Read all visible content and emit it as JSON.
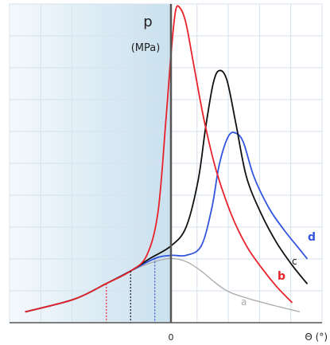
{
  "chart_data": {
    "type": "line",
    "title": "",
    "xlabel": "Θ (°)",
    "ylabel": "p",
    "yunit": "(MPa)",
    "xticks": [
      {
        "value": 0,
        "label": "0"
      }
    ],
    "xlim": [
      -10,
      10
    ],
    "ylim": [
      0,
      10
    ],
    "grid": true,
    "legend": "labels-at-curve-ends",
    "colors": {
      "a": "#aaaaaa",
      "b": "#e8222a",
      "c": "#111111",
      "d": "#3355dd",
      "shading": "#cfe3f0",
      "grid": "#d4e2ec",
      "axis": "#444444"
    },
    "series": [
      {
        "name": "a",
        "points": [
          [
            -9.0,
            0.3
          ],
          [
            -6.0,
            0.7
          ],
          [
            -4.0,
            1.2
          ],
          [
            -2.5,
            1.6
          ],
          [
            -1.0,
            1.9
          ],
          [
            0.0,
            2.0
          ],
          [
            1.0,
            1.9
          ],
          [
            2.0,
            1.6
          ],
          [
            3.0,
            1.2
          ],
          [
            4.0,
            0.9
          ],
          [
            6.0,
            0.6
          ],
          [
            8.5,
            0.3
          ]
        ]
      },
      {
        "name": "b",
        "points": [
          [
            -9.0,
            0.3
          ],
          [
            -6.0,
            0.7
          ],
          [
            -4.0,
            1.2
          ],
          [
            -2.5,
            1.6
          ],
          [
            -1.5,
            2.1
          ],
          [
            -0.8,
            3.5
          ],
          [
            -0.3,
            6.5
          ],
          [
            0.0,
            8.5
          ],
          [
            0.3,
            9.9
          ],
          [
            0.6,
            10.0
          ],
          [
            1.0,
            9.5
          ],
          [
            1.5,
            8.2
          ],
          [
            2.2,
            6.4
          ],
          [
            3.0,
            4.8
          ],
          [
            4.0,
            3.4
          ],
          [
            5.0,
            2.4
          ],
          [
            6.0,
            1.7
          ],
          [
            7.0,
            1.1
          ],
          [
            8.0,
            0.6
          ]
        ]
      },
      {
        "name": "c",
        "points": [
          [
            -9.0,
            0.3
          ],
          [
            -6.0,
            0.7
          ],
          [
            -4.0,
            1.2
          ],
          [
            -2.5,
            1.6
          ],
          [
            -1.3,
            2.0
          ],
          [
            0.0,
            2.4
          ],
          [
            1.0,
            3.0
          ],
          [
            1.8,
            4.5
          ],
          [
            2.3,
            6.2
          ],
          [
            2.8,
            7.6
          ],
          [
            3.2,
            8.0
          ],
          [
            3.7,
            7.7
          ],
          [
            4.3,
            6.3
          ],
          [
            5.0,
            4.6
          ],
          [
            6.0,
            3.4
          ],
          [
            7.0,
            2.5
          ],
          [
            8.0,
            1.8
          ],
          [
            9.0,
            1.2
          ]
        ]
      },
      {
        "name": "d",
        "points": [
          [
            -9.0,
            0.3
          ],
          [
            -6.0,
            0.7
          ],
          [
            -4.0,
            1.2
          ],
          [
            -2.5,
            1.6
          ],
          [
            -1.0,
            2.0
          ],
          [
            0.0,
            2.1
          ],
          [
            1.0,
            2.1
          ],
          [
            2.0,
            2.4
          ],
          [
            2.7,
            3.6
          ],
          [
            3.2,
            5.0
          ],
          [
            3.8,
            5.9
          ],
          [
            4.3,
            6.0
          ],
          [
            4.8,
            5.7
          ],
          [
            5.5,
            4.6
          ],
          [
            6.5,
            3.6
          ],
          [
            7.5,
            2.9
          ],
          [
            8.5,
            2.3
          ],
          [
            9.0,
            2.0
          ]
        ]
      }
    ]
  }
}
